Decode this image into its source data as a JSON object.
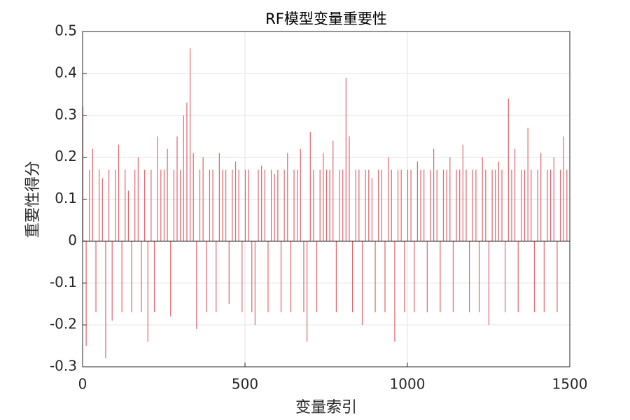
{
  "chart_data": {
    "type": "bar",
    "title": "RF模型变量重要性",
    "x_label": "变量索引",
    "y_label": "重要性得分",
    "color": "#d9404a",
    "grid": true,
    "xlim": [
      0,
      1500
    ],
    "xticks": [
      0,
      500,
      1000,
      1500
    ],
    "ylim": [
      -0.3,
      0.5
    ],
    "yticks": [
      -0.3,
      -0.2,
      -0.1,
      0,
      0.1,
      0.2,
      0.3,
      0.4,
      0.5
    ],
    "x": [
      1,
      11,
      21,
      31,
      41,
      51,
      61,
      71,
      81,
      91,
      101,
      111,
      121,
      131,
      141,
      151,
      161,
      171,
      181,
      191,
      201,
      211,
      221,
      231,
      241,
      251,
      261,
      271,
      281,
      291,
      301,
      311,
      321,
      331,
      341,
      351,
      361,
      371,
      381,
      391,
      401,
      411,
      421,
      431,
      441,
      451,
      461,
      471,
      481,
      491,
      501,
      511,
      521,
      531,
      541,
      551,
      561,
      571,
      581,
      591,
      601,
      611,
      621,
      631,
      641,
      651,
      661,
      671,
      681,
      691,
      701,
      711,
      721,
      731,
      741,
      751,
      761,
      771,
      781,
      791,
      801,
      811,
      821,
      831,
      841,
      851,
      861,
      871,
      881,
      891,
      901,
      911,
      921,
      931,
      941,
      951,
      961,
      971,
      981,
      991,
      1001,
      1011,
      1021,
      1031,
      1041,
      1051,
      1061,
      1071,
      1081,
      1091,
      1101,
      1111,
      1121,
      1131,
      1141,
      1151,
      1161,
      1171,
      1181,
      1191,
      1201,
      1211,
      1221,
      1231,
      1241,
      1251,
      1261,
      1271,
      1281,
      1291,
      1301,
      1311,
      1321,
      1331,
      1341,
      1351,
      1361,
      1371,
      1381,
      1391,
      1401,
      1411,
      1421,
      1431,
      1441,
      1451,
      1461,
      1471,
      1481,
      1491
    ],
    "values": [
      0.32,
      -0.25,
      0.17,
      0.22,
      -0.17,
      0.17,
      0.15,
      -0.28,
      0.17,
      -0.19,
      0.17,
      0.23,
      -0.17,
      0.17,
      0.12,
      -0.17,
      0.17,
      0.2,
      -0.17,
      0.17,
      -0.24,
      0.17,
      -0.17,
      0.25,
      0.17,
      0.17,
      0.22,
      -0.18,
      0.17,
      0.25,
      0.17,
      0.3,
      0.33,
      0.46,
      0.21,
      -0.21,
      0.17,
      0.2,
      -0.17,
      0.17,
      0.17,
      -0.17,
      0.21,
      0.17,
      0.17,
      -0.15,
      0.17,
      0.19,
      0.17,
      -0.17,
      0.17,
      0.17,
      -0.17,
      -0.2,
      0.17,
      0.18,
      0.17,
      -0.17,
      0.17,
      0.16,
      0.17,
      -0.17,
      0.17,
      0.21,
      -0.17,
      0.17,
      0.17,
      0.22,
      -0.17,
      -0.24,
      0.26,
      0.17,
      -0.17,
      0.17,
      0.21,
      0.17,
      0.17,
      0.24,
      -0.17,
      0.17,
      0.17,
      0.39,
      0.25,
      -0.17,
      0.17,
      0.17,
      -0.2,
      0.17,
      0.17,
      0.15,
      -0.17,
      0.17,
      0.17,
      -0.17,
      0.2,
      0.17,
      -0.24,
      0.17,
      0.17,
      -0.17,
      0.17,
      0.17,
      -0.17,
      0.19,
      0.17,
      0.17,
      -0.17,
      0.17,
      0.22,
      0.17,
      -0.17,
      0.17,
      0.17,
      0.2,
      -0.17,
      0.17,
      0.17,
      0.23,
      0.17,
      -0.17,
      0.17,
      0.17,
      -0.17,
      0.2,
      0.17,
      -0.2,
      0.17,
      0.17,
      0.19,
      0.17,
      -0.17,
      0.34,
      0.17,
      0.22,
      -0.17,
      0.17,
      0.17,
      0.27,
      0.17,
      -0.17,
      0.17,
      0.21,
      -0.17,
      0.17,
      0.17,
      0.2,
      -0.17,
      0.17,
      0.25,
      0.17
    ]
  }
}
